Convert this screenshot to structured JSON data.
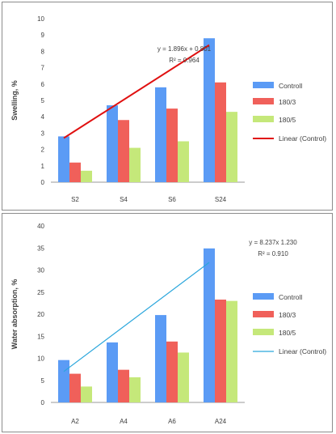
{
  "chart_data": [
    {
      "type": "bar",
      "categories": [
        "S2",
        "S4",
        "S6",
        "S24"
      ],
      "series": [
        {
          "name": "Controll",
          "values": [
            2.8,
            4.7,
            5.8,
            8.8
          ]
        },
        {
          "name": "180/3",
          "values": [
            1.2,
            3.8,
            4.5,
            6.1
          ]
        },
        {
          "name": "180/5",
          "values": [
            0.7,
            2.1,
            2.5,
            4.3
          ]
        }
      ],
      "trendline": {
        "name": "Linear (Control)",
        "slope": 1.896,
        "intercept": 0.801,
        "equation": "y = 1.896x + 0.801",
        "r2": "R² = 0.964"
      },
      "ylabel": "Swelling, %",
      "ylim": [
        0,
        10
      ],
      "ytick_step": 1,
      "legend_position": "right",
      "colors": {
        "Controll": "#5b9bf5",
        "180/3": "#f0605a",
        "180/5": "#c5e87a",
        "trend": "#e01010"
      }
    },
    {
      "type": "bar",
      "categories": [
        "A2",
        "A4",
        "A6",
        "A24"
      ],
      "series": [
        {
          "name": "Controll",
          "values": [
            9.6,
            13.6,
            19.8,
            34.9
          ]
        },
        {
          "name": "180/3",
          "values": [
            6.5,
            7.4,
            13.8,
            23.3
          ]
        },
        {
          "name": "180/5",
          "values": [
            3.6,
            5.7,
            11.3,
            23.0
          ]
        }
      ],
      "trendline": {
        "name": "Linear (Control)",
        "slope": 8.237,
        "intercept": -1.23,
        "equation": "y = 8.237x   1.230",
        "r2": "R² = 0.910"
      },
      "ylabel": "Water absorption, %",
      "ylim": [
        0,
        40
      ],
      "ytick_step": 5,
      "legend_position": "right",
      "colors": {
        "Controll": "#5b9bf5",
        "180/3": "#f0605a",
        "180/5": "#c5e87a",
        "trend": "#2aa6dc"
      }
    }
  ]
}
